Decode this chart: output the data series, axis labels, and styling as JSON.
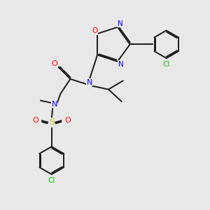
{
  "bg_color": "#e8e8e8",
  "bond_color": "#1a1a1a",
  "N_color": "#0000ff",
  "O_color": "#ff0000",
  "S_color": "#cccc00",
  "Cl_color": "#00cc00",
  "lw": 1.4,
  "dbo": 0.035,
  "xlim": [
    0,
    6
  ],
  "ylim": [
    0,
    6
  ],
  "figsize": [
    3.0,
    3.0
  ],
  "dpi": 100
}
